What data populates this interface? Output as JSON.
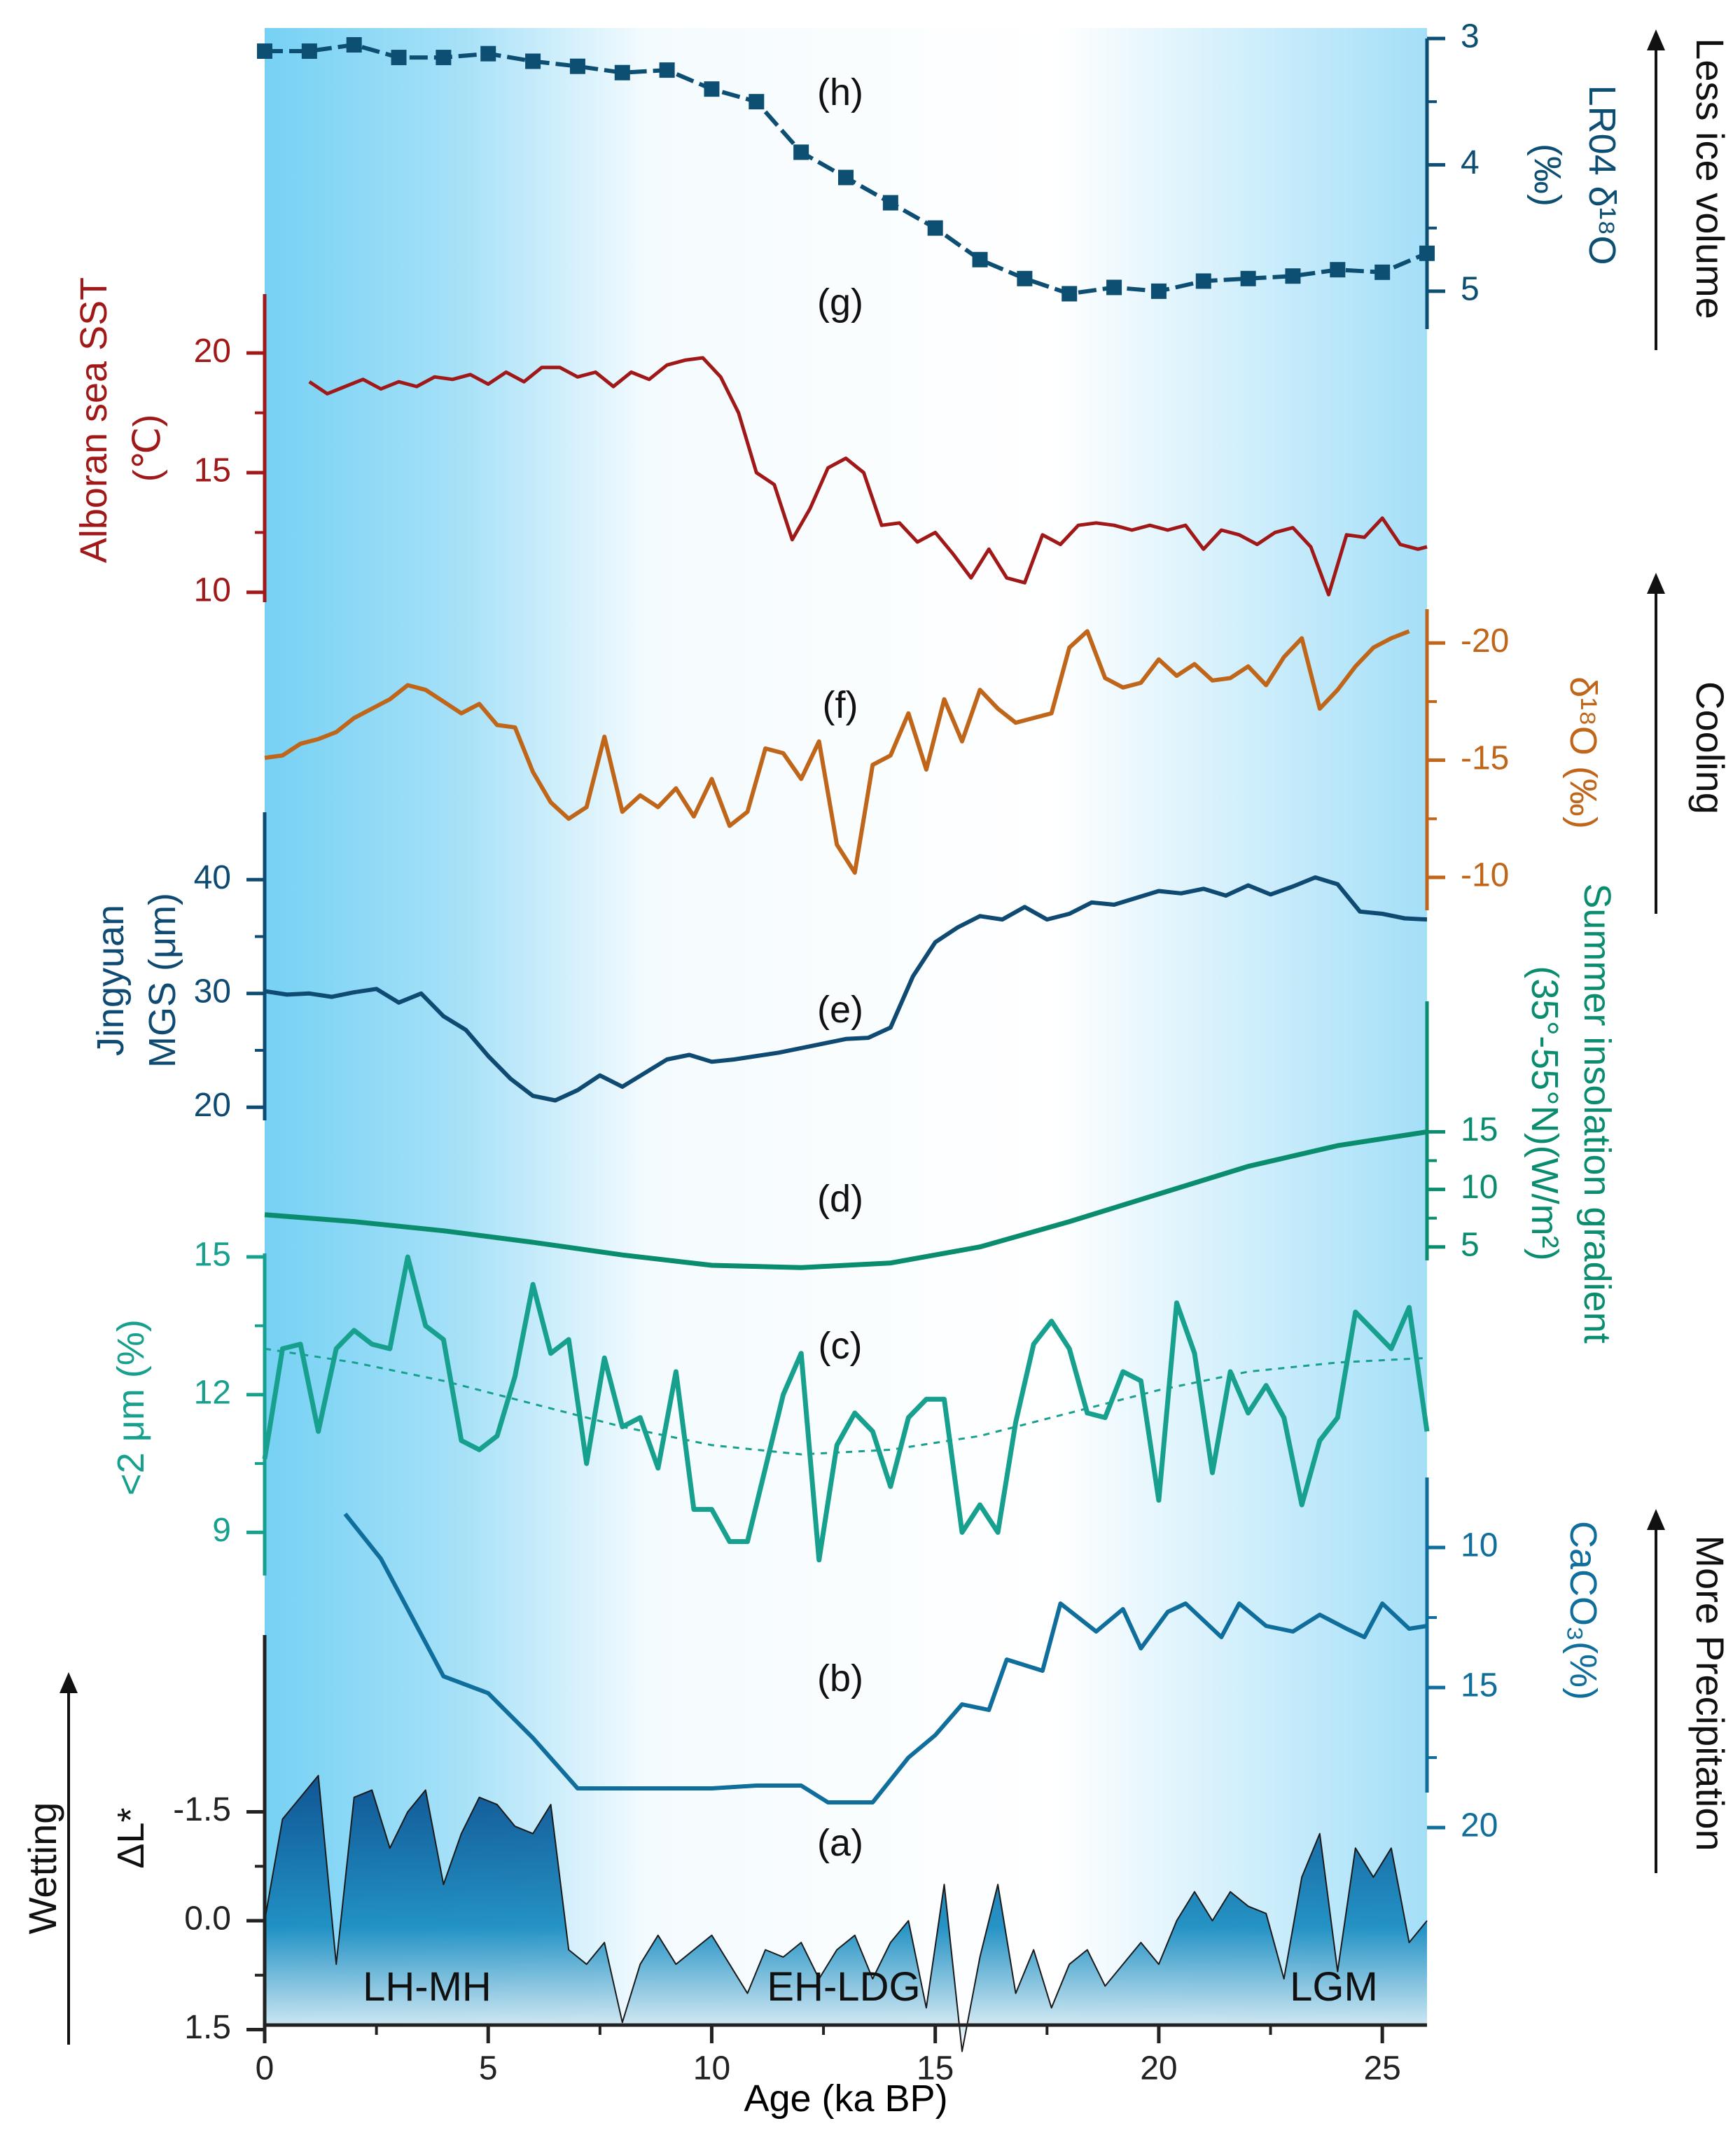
{
  "colors": {
    "axis": "#222222",
    "lr04": "#0d4f73",
    "sst": "#a01818",
    "d18o_speleo": "#c0661a",
    "mgs": "#0f4a72",
    "insolation": "#0a8c6e",
    "clay": "#18a08e",
    "caco3": "#0f6e9b",
    "lstar": "#0a5d9c",
    "bg_blue": "#76d1f4"
  },
  "chart_data": {
    "type": "line",
    "xlabel": "Age (ka BP)",
    "xlim": [
      0,
      26
    ],
    "x_ticks": [
      "0",
      "5",
      "10",
      "15",
      "20",
      "25"
    ],
    "period_labels": [
      "LH-MH",
      "EH-LDG",
      "LGM"
    ],
    "side_annotations": [
      "Less ice volume",
      "Cooling",
      "More Precipitation",
      "Wetting"
    ],
    "series": [
      {
        "id": "h",
        "panel_label": "(h)",
        "name": "LR04 δ18O",
        "axis_title_lines": [
          "LR04 δ¹⁸O",
          "(‰)"
        ],
        "axis_side": "right",
        "ylim": [
          5.3,
          3
        ],
        "ticks": [
          "3",
          "4",
          "5"
        ],
        "x": [
          0,
          1,
          2,
          3,
          4,
          5,
          6,
          7,
          8,
          9,
          10,
          11,
          12,
          13,
          14,
          15,
          16,
          17,
          18,
          19,
          20,
          21,
          22,
          23,
          24,
          25,
          26
        ],
        "y": [
          3.1,
          3.1,
          3.05,
          3.15,
          3.15,
          3.12,
          3.18,
          3.22,
          3.27,
          3.25,
          3.4,
          3.5,
          3.9,
          4.1,
          4.3,
          4.5,
          4.75,
          4.9,
          5.02,
          4.97,
          5.0,
          4.92,
          4.9,
          4.88,
          4.83,
          4.85,
          4.7
        ]
      },
      {
        "id": "g",
        "panel_label": "(g)",
        "name": "Alboran sea SST",
        "axis_title_lines": [
          "Alboran sea SST",
          "(℃)"
        ],
        "axis_side": "left",
        "unit": "℃",
        "ylim": [
          9,
          21
        ],
        "ticks": [
          "10",
          "15",
          "20"
        ],
        "x": [
          1.0,
          1.4,
          1.8,
          2.2,
          2.6,
          3.0,
          3.4,
          3.8,
          4.2,
          4.6,
          5.0,
          5.4,
          5.8,
          6.2,
          6.6,
          7.0,
          7.4,
          7.8,
          8.2,
          8.6,
          9.0,
          9.4,
          9.8,
          10.2,
          10.6,
          11.0,
          11.4,
          11.8,
          12.2,
          12.6,
          13.0,
          13.4,
          13.8,
          14.2,
          14.6,
          15.0,
          15.4,
          15.8,
          16.2,
          16.6,
          17.0,
          17.4,
          17.8,
          18.2,
          18.6,
          19.0,
          19.4,
          19.8,
          20.2,
          20.6,
          21.0,
          21.4,
          21.8,
          22.2,
          22.6,
          23.0,
          23.4,
          23.8,
          24.2,
          24.6,
          25.0,
          25.4,
          25.8,
          26.0
        ],
        "y": [
          18.8,
          18.3,
          18.6,
          18.9,
          18.5,
          18.8,
          18.6,
          19.0,
          18.9,
          19.1,
          18.7,
          19.2,
          18.8,
          19.4,
          19.4,
          19.0,
          19.2,
          18.6,
          19.2,
          18.9,
          19.5,
          19.7,
          19.8,
          19.0,
          17.5,
          15.0,
          14.5,
          12.2,
          13.5,
          15.2,
          15.6,
          15.0,
          12.8,
          12.9,
          12.1,
          12.5,
          11.6,
          10.6,
          11.8,
          10.6,
          10.4,
          12.4,
          12.0,
          12.8,
          12.9,
          12.8,
          12.6,
          12.8,
          12.6,
          12.8,
          11.8,
          12.6,
          12.4,
          12.0,
          12.5,
          12.7,
          11.9,
          9.9,
          12.4,
          12.3,
          13.1,
          12.0,
          11.8,
          11.9
        ]
      },
      {
        "id": "f",
        "panel_label": "(f)",
        "name": "δ18O (‰)",
        "axis_title_lines": [
          "δ¹⁸O (‰)"
        ],
        "axis_side": "right",
        "unit": "‰",
        "ylim": [
          -8,
          -21.5
        ],
        "ticks": [
          "-10",
          "-15",
          "-20"
        ],
        "x": [
          0.0,
          0.4,
          0.8,
          1.2,
          1.6,
          2.0,
          2.4,
          2.8,
          3.2,
          3.6,
          4.0,
          4.4,
          4.8,
          5.2,
          5.6,
          6.0,
          6.4,
          6.8,
          7.2,
          7.6,
          8.0,
          8.4,
          8.8,
          9.2,
          9.6,
          10.0,
          10.4,
          10.8,
          11.2,
          11.6,
          12.0,
          12.4,
          12.8,
          13.2,
          13.6,
          14.0,
          14.4,
          14.8,
          15.2,
          15.6,
          16.0,
          16.4,
          16.8,
          17.2,
          17.6,
          18.0,
          18.4,
          18.8,
          19.2,
          19.6,
          20.0,
          20.4,
          20.8,
          21.2,
          21.6,
          22.0,
          22.4,
          22.8,
          23.2,
          23.6,
          24.0,
          24.4,
          24.8,
          25.2,
          25.6
        ],
        "y": [
          -15.1,
          -15.2,
          -15.7,
          -15.9,
          -16.2,
          -16.8,
          -17.2,
          -17.6,
          -18.2,
          -18.0,
          -17.5,
          -17.0,
          -17.4,
          -16.5,
          -16.4,
          -14.5,
          -13.2,
          -12.5,
          -13.0,
          -16.0,
          -12.8,
          -13.5,
          -13.0,
          -13.8,
          -12.6,
          -14.2,
          -12.2,
          -12.8,
          -15.5,
          -15.3,
          -14.2,
          -15.8,
          -11.4,
          -10.2,
          -14.8,
          -15.2,
          -17.0,
          -14.6,
          -17.6,
          -15.8,
          -18.0,
          -17.2,
          -16.6,
          -16.8,
          -17.0,
          -19.8,
          -20.5,
          -18.5,
          -18.1,
          -18.3,
          -19.3,
          -18.6,
          -19.1,
          -18.4,
          -18.5,
          -19.0,
          -18.2,
          -19.4,
          -20.2,
          -17.2,
          -18.0,
          -19.0,
          -19.8,
          -20.2,
          -20.5
        ]
      },
      {
        "id": "e",
        "panel_label": "(e)",
        "name": "Jingyuan MGS",
        "axis_title_lines": [
          "Jingyuan",
          "MGS (μm)"
        ],
        "axis_side": "left",
        "unit": "μm",
        "ylim": [
          17,
          45
        ],
        "ticks": [
          "20",
          "30",
          "40"
        ],
        "x": [
          0.0,
          0.5,
          1.0,
          1.5,
          2.0,
          2.5,
          3.0,
          3.5,
          4.0,
          4.5,
          5.0,
          5.5,
          6.0,
          6.5,
          7.0,
          7.5,
          8.0,
          8.5,
          9.0,
          9.5,
          10.0,
          10.5,
          11.0,
          11.5,
          12.0,
          12.5,
          13.0,
          13.5,
          14.0,
          14.5,
          15.0,
          15.5,
          16.0,
          16.5,
          17.0,
          17.5,
          18.0,
          18.5,
          19.0,
          19.5,
          20.0,
          20.5,
          21.0,
          21.5,
          22.0,
          22.5,
          23.0,
          23.5,
          24.0,
          24.5,
          25.0,
          25.5,
          26.0
        ],
        "y": [
          30.2,
          29.9,
          30.0,
          29.7,
          30.1,
          30.4,
          29.2,
          30.0,
          28.0,
          26.8,
          24.5,
          22.5,
          21.0,
          20.6,
          21.5,
          22.8,
          21.8,
          23.0,
          24.2,
          24.6,
          24.0,
          24.2,
          24.5,
          24.8,
          25.2,
          25.6,
          26.0,
          26.1,
          27.0,
          31.5,
          34.5,
          35.8,
          36.8,
          36.5,
          37.6,
          36.5,
          37.0,
          38.0,
          37.8,
          38.4,
          39.0,
          38.8,
          39.2,
          38.6,
          39.5,
          38.7,
          39.4,
          40.2,
          39.6,
          37.2,
          37.0,
          36.6,
          36.5
        ]
      },
      {
        "id": "d",
        "panel_label": "(d)",
        "name": "Summer insolation gradient (35°-55°N)",
        "axis_title_lines": [
          "Summer insolation gradient",
          "(35°-55°N)(W/m²)"
        ],
        "axis_side": "right",
        "unit": "W/m²",
        "ylim": [
          2,
          16
        ],
        "ticks": [
          "5",
          "10",
          "15"
        ],
        "x": [
          0,
          2,
          4,
          6,
          8,
          10,
          12,
          14,
          16,
          18,
          20,
          22,
          24,
          26
        ],
        "y": [
          7.8,
          7.2,
          6.4,
          5.4,
          4.3,
          3.4,
          3.2,
          3.6,
          5.0,
          7.2,
          9.6,
          12.0,
          13.8,
          15.0
        ]
      },
      {
        "id": "c",
        "panel_label": "(c)",
        "name": "<2 μm (%)",
        "axis_title_lines": [
          "<2 μm (%)"
        ],
        "axis_side": "left",
        "unit": "%",
        "ylim": [
          8,
          15
        ],
        "ticks": [
          "9",
          "12",
          "15"
        ],
        "x": [
          0.0,
          0.4,
          0.8,
          1.2,
          1.6,
          2.0,
          2.4,
          2.8,
          3.2,
          3.6,
          4.0,
          4.4,
          4.8,
          5.2,
          5.6,
          6.0,
          6.4,
          6.8,
          7.2,
          7.6,
          8.0,
          8.4,
          8.8,
          9.2,
          9.6,
          10.0,
          10.4,
          10.8,
          11.2,
          11.6,
          12.0,
          12.4,
          12.8,
          13.2,
          13.6,
          14.0,
          14.4,
          14.8,
          15.2,
          15.6,
          16.0,
          16.4,
          16.8,
          17.2,
          17.6,
          18.0,
          18.4,
          18.8,
          19.2,
          19.6,
          20.0,
          20.4,
          20.8,
          21.2,
          21.6,
          22.0,
          22.4,
          22.8,
          23.2,
          23.6,
          24.0,
          24.4,
          24.8,
          25.2,
          25.6,
          26.0
        ],
        "y": [
          10.6,
          13.0,
          13.1,
          11.2,
          13.0,
          13.4,
          13.1,
          13.0,
          15.0,
          13.5,
          13.2,
          11.0,
          10.8,
          11.1,
          12.4,
          14.4,
          12.9,
          13.2,
          10.5,
          12.8,
          11.3,
          11.5,
          10.4,
          12.5,
          9.5,
          9.5,
          8.8,
          8.8,
          10.4,
          12.0,
          12.9,
          8.4,
          10.9,
          11.6,
          11.2,
          10.0,
          11.5,
          11.9,
          11.9,
          9.0,
          9.6,
          9.0,
          11.4,
          13.1,
          13.6,
          13.0,
          11.6,
          11.5,
          12.5,
          12.3,
          9.7,
          14.0,
          12.9,
          10.3,
          12.5,
          11.6,
          12.2,
          11.5,
          9.6,
          11.0,
          11.5,
          13.8,
          13.4,
          13.0,
          13.9,
          11.2
        ]
      },
      {
        "id": "c_trend",
        "name": "<2 μm trend",
        "ylim": [
          8,
          15
        ],
        "x": [
          0,
          2,
          4,
          6,
          8,
          10,
          12,
          14,
          16,
          18,
          20,
          22,
          24,
          26
        ],
        "y": [
          13.0,
          12.7,
          12.3,
          11.8,
          11.3,
          10.9,
          10.7,
          10.8,
          11.1,
          11.6,
          12.1,
          12.5,
          12.7,
          12.8
        ]
      },
      {
        "id": "b",
        "panel_label": "(b)",
        "name": "CaCO3 (%)",
        "axis_title_lines": [
          "CaCO₃(%)"
        ],
        "axis_side": "right",
        "unit": "%",
        "ylim": [
          21,
          7.5
        ],
        "ticks": [
          "10",
          "15",
          "20"
        ],
        "x": [
          1.8,
          2.6,
          4.0,
          5.0,
          6.0,
          7.0,
          8.0,
          9.0,
          10.0,
          11.0,
          12.0,
          12.6,
          13.6,
          14.4,
          15.0,
          15.6,
          16.2,
          16.6,
          17.4,
          17.8,
          18.6,
          19.2,
          19.6,
          20.2,
          20.6,
          21.4,
          21.8,
          22.4,
          23.0,
          23.6,
          24.2,
          24.6,
          25.0,
          25.6,
          26.0
        ],
        "y": [
          8.8,
          10.4,
          14.6,
          15.2,
          16.8,
          18.6,
          18.6,
          18.6,
          18.6,
          18.5,
          18.5,
          19.1,
          19.1,
          17.5,
          16.7,
          15.6,
          15.8,
          14.0,
          14.4,
          12.0,
          13.0,
          12.2,
          13.6,
          12.3,
          12.0,
          13.2,
          12.0,
          12.8,
          13.0,
          12.4,
          12.9,
          13.2,
          12.0,
          12.9,
          12.8
        ]
      },
      {
        "id": "a",
        "panel_label": "(a)",
        "name": "ΔL*",
        "axis_title_lines": [
          "ΔL*"
        ],
        "axis_side": "left",
        "ylim": [
          1.9,
          -3.0
        ],
        "ticks": [
          "-1.5",
          "0.0",
          "1.5"
        ],
        "x": [
          0.0,
          0.4,
          0.8,
          1.2,
          1.6,
          2.0,
          2.4,
          2.8,
          3.2,
          3.6,
          4.0,
          4.4,
          4.8,
          5.2,
          5.6,
          6.0,
          6.4,
          6.8,
          7.2,
          7.6,
          8.0,
          8.4,
          8.8,
          9.2,
          9.6,
          10.0,
          10.4,
          10.8,
          11.2,
          11.6,
          12.0,
          12.4,
          12.8,
          13.2,
          13.6,
          14.0,
          14.4,
          14.8,
          15.2,
          15.6,
          16.0,
          16.4,
          16.8,
          17.2,
          17.6,
          18.0,
          18.4,
          18.8,
          19.2,
          19.6,
          20.0,
          20.4,
          20.8,
          21.2,
          21.6,
          22.0,
          22.4,
          22.8,
          23.2,
          23.6,
          24.0,
          24.4,
          24.8,
          25.2,
          25.6,
          26.0
        ],
        "y": [
          0.0,
          -1.4,
          -1.7,
          -2.0,
          0.6,
          -1.7,
          -1.8,
          -1.0,
          -1.5,
          -1.8,
          -0.5,
          -1.2,
          -1.7,
          -1.6,
          -1.3,
          -1.2,
          -1.6,
          0.4,
          0.6,
          0.3,
          1.4,
          0.6,
          0.2,
          0.6,
          0.4,
          0.2,
          0.6,
          1.0,
          0.4,
          0.5,
          0.3,
          0.8,
          0.4,
          0.2,
          0.8,
          0.3,
          0.0,
          1.2,
          -0.5,
          1.8,
          0.5,
          -0.5,
          1.0,
          0.4,
          1.2,
          0.6,
          0.4,
          0.9,
          0.6,
          0.3,
          0.6,
          0.0,
          -0.4,
          0.0,
          -0.4,
          -0.2,
          -0.1,
          0.8,
          -0.6,
          -1.2,
          0.7,
          -1.0,
          -0.6,
          -1.0,
          0.3,
          0.0
        ]
      }
    ]
  }
}
